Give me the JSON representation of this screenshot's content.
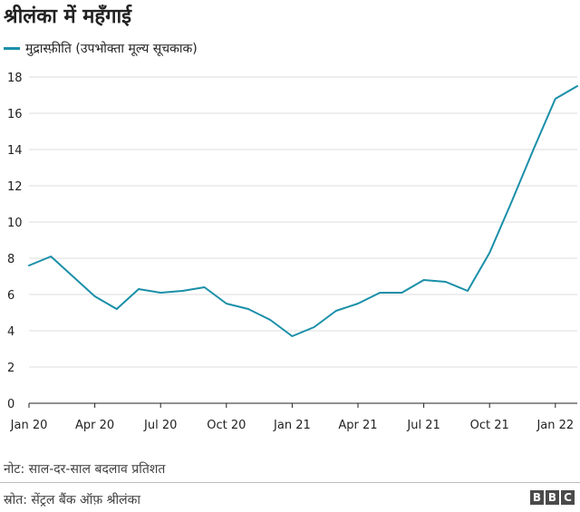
{
  "header": {
    "title": "श्रीलंका में महँगाई"
  },
  "legend": {
    "label": "मुद्रास्फ़ीति (उपभोक्ता मूल्य सूचकाक)"
  },
  "colors": {
    "line": "#1a8fa8",
    "axis": "#222222",
    "grid": "#dddddd"
  },
  "chart_data": {
    "type": "line",
    "title": "श्रीलंका में महँगाई",
    "xlabel": "",
    "ylabel": "",
    "ylim": [
      0,
      18
    ],
    "yticks": [
      0,
      2,
      4,
      6,
      8,
      10,
      12,
      14,
      16,
      18
    ],
    "grid": true,
    "legend_position": "top-left",
    "x": [
      "Jan 20",
      "Feb 20",
      "Mar 20",
      "Apr 20",
      "May 20",
      "Jun 20",
      "Jul 20",
      "Aug 20",
      "Sep 20",
      "Oct 20",
      "Nov 20",
      "Dec 20",
      "Jan 21",
      "Feb 21",
      "Mar 21",
      "Apr 21",
      "May 21",
      "Jun 21",
      "Jul 21",
      "Aug 21",
      "Sep 21",
      "Oct 21",
      "Nov 21",
      "Dec 21",
      "Jan 22",
      "Feb 22"
    ],
    "xtick_labels": [
      {
        "index": 0,
        "label": "Jan 20"
      },
      {
        "index": 3,
        "label": "Apr 20"
      },
      {
        "index": 6,
        "label": "Jul 20"
      },
      {
        "index": 9,
        "label": "Oct 20"
      },
      {
        "index": 12,
        "label": "Jan 21"
      },
      {
        "index": 15,
        "label": "Apr 21"
      },
      {
        "index": 18,
        "label": "Jul 21"
      },
      {
        "index": 21,
        "label": "Oct 21"
      },
      {
        "index": 24,
        "label": "Jan 22"
      }
    ],
    "series": [
      {
        "name": "मुद्रास्फ़ीति (उपभोक्ता मूल्य सूचकाक)",
        "values": [
          7.6,
          8.1,
          7.0,
          5.9,
          5.2,
          6.3,
          6.1,
          6.2,
          6.4,
          5.5,
          5.2,
          4.6,
          3.7,
          4.2,
          5.1,
          5.5,
          6.1,
          6.1,
          6.8,
          6.7,
          6.2,
          8.3,
          11.1,
          14.0,
          16.8,
          17.5
        ]
      }
    ]
  },
  "footer": {
    "note": "नोट: साल-दर-साल बदलाव प्रतिशत",
    "source": "स्रोत: सेंट्रल बैंक ऑफ़ श्रीलंका",
    "logo": [
      "B",
      "B",
      "C"
    ]
  }
}
